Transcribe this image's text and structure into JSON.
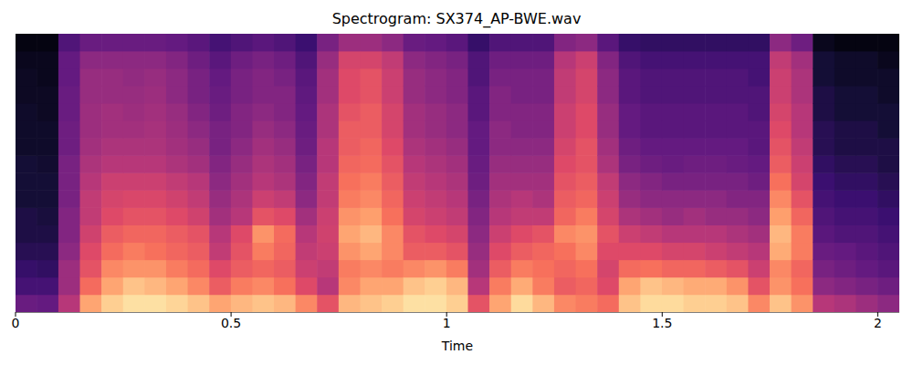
{
  "chart_data": {
    "type": "heatmap",
    "title": "Spectrogram: SX374_AP-BWE.wav",
    "x_label": "Time",
    "tick_labels": "x",
    "xlim": [
      0,
      2.05
    ],
    "xticks": [
      0,
      0.5,
      1,
      1.5,
      2
    ],
    "ylim": [
      0,
      8000
    ],
    "zlim": [
      -80,
      0
    ],
    "x": [
      0,
      0.05,
      0.1,
      0.15,
      0.2,
      0.25,
      0.3,
      0.35,
      0.4,
      0.45,
      0.5,
      0.55,
      0.6,
      0.65,
      0.7,
      0.75,
      0.8,
      0.85,
      0.9,
      0.95,
      1.0,
      1.05,
      1.1,
      1.15,
      1.2,
      1.25,
      1.3,
      1.35,
      1.4,
      1.45,
      1.5,
      1.55,
      1.6,
      1.65,
      1.7,
      1.75,
      1.8,
      1.85,
      1.9,
      1.95,
      2.0
    ],
    "y": [
      0,
      500,
      1000,
      1500,
      2000,
      2500,
      3000,
      3500,
      4000,
      4500,
      5000,
      5500,
      6000,
      6500,
      7000,
      7500
    ],
    "cells": [
      [
        -55,
        -62,
        -65,
        -68,
        -70,
        -70,
        -72,
        -72,
        -72,
        -74,
        -74,
        -74,
        -75,
        -75,
        -76,
        -78
      ],
      [
        -56,
        -62,
        -66,
        -68,
        -70,
        -71,
        -72,
        -72,
        -73,
        -74,
        -74,
        -75,
        -75,
        -76,
        -76,
        -78
      ],
      [
        -40,
        -45,
        -45,
        -48,
        -50,
        -50,
        -52,
        -52,
        -52,
        -54,
        -54,
        -55,
        -55,
        -56,
        -56,
        -60
      ],
      [
        -15,
        -25,
        -30,
        -32,
        -35,
        -38,
        -38,
        -40,
        -42,
        -44,
        -45,
        -45,
        -46,
        -46,
        -48,
        -55
      ],
      [
        -8,
        -15,
        -20,
        -25,
        -28,
        -32,
        -34,
        -36,
        -40,
        -42,
        -44,
        -44,
        -46,
        -46,
        -48,
        -55
      ],
      [
        -5,
        -10,
        -18,
        -22,
        -26,
        -30,
        -33,
        -36,
        -40,
        -42,
        -44,
        -45,
        -46,
        -47,
        -48,
        -55
      ],
      [
        -5,
        -12,
        -18,
        -24,
        -26,
        -30,
        -33,
        -36,
        -40,
        -42,
        -43,
        -44,
        -45,
        -46,
        -48,
        -55
      ],
      [
        -7,
        -15,
        -22,
        -26,
        -28,
        -32,
        -35,
        -38,
        -42,
        -44,
        -45,
        -46,
        -48,
        -48,
        -50,
        -56
      ],
      [
        -10,
        -20,
        -25,
        -28,
        -30,
        -35,
        -38,
        -40,
        -44,
        -46,
        -48,
        -50,
        -52,
        -52,
        -54,
        -58
      ],
      [
        -15,
        -28,
        -32,
        -38,
        -40,
        -44,
        -46,
        -48,
        -50,
        -52,
        -52,
        -54,
        -55,
        -56,
        -58,
        -62
      ],
      [
        -12,
        -22,
        -28,
        -30,
        -32,
        -40,
        -42,
        -44,
        -46,
        -48,
        -50,
        -50,
        -52,
        -52,
        -54,
        -60
      ],
      [
        -10,
        -20,
        -26,
        -22,
        -18,
        -30,
        -36,
        -40,
        -42,
        -44,
        -46,
        -48,
        -50,
        -50,
        -52,
        -58
      ],
      [
        -12,
        -24,
        -28,
        -26,
        -25,
        -32,
        -38,
        -42,
        -44,
        -46,
        -48,
        -50,
        -50,
        -52,
        -54,
        -60
      ],
      [
        -20,
        -32,
        -36,
        -38,
        -40,
        -44,
        -48,
        -50,
        -52,
        -54,
        -55,
        -56,
        -57,
        -58,
        -60,
        -64
      ],
      [
        -30,
        -40,
        -38,
        -36,
        -35,
        -36,
        -38,
        -38,
        -40,
        -40,
        -42,
        -42,
        -44,
        -44,
        -46,
        -52
      ],
      [
        -12,
        -20,
        -22,
        -18,
        -15,
        -18,
        -22,
        -24,
        -26,
        -28,
        -28,
        -30,
        -32,
        -32,
        -34,
        -45
      ],
      [
        -10,
        -15,
        -20,
        -15,
        -12,
        -16,
        -20,
        -22,
        -25,
        -26,
        -28,
        -28,
        -30,
        -30,
        -34,
        -45
      ],
      [
        -8,
        -15,
        -22,
        -20,
        -20,
        -24,
        -26,
        -28,
        -30,
        -32,
        -34,
        -34,
        -36,
        -36,
        -38,
        -48
      ],
      [
        -5,
        -10,
        -20,
        -28,
        -30,
        -34,
        -36,
        -38,
        -40,
        -42,
        -44,
        -44,
        -46,
        -46,
        -48,
        -55
      ],
      [
        -5,
        -8,
        -18,
        -28,
        -32,
        -36,
        -38,
        -40,
        -42,
        -44,
        -46,
        -46,
        -48,
        -48,
        -50,
        -56
      ],
      [
        -8,
        -12,
        -22,
        -30,
        -34,
        -38,
        -40,
        -42,
        -44,
        -46,
        -48,
        -48,
        -50,
        -50,
        -52,
        -58
      ],
      [
        -30,
        -40,
        -44,
        -46,
        -48,
        -50,
        -52,
        -54,
        -55,
        -56,
        -56,
        -58,
        -58,
        -60,
        -60,
        -65
      ],
      [
        -15,
        -22,
        -28,
        -32,
        -36,
        -40,
        -42,
        -44,
        -46,
        -48,
        -48,
        -50,
        -50,
        -52,
        -54,
        -60
      ],
      [
        -6,
        -14,
        -22,
        -28,
        -32,
        -38,
        -40,
        -44,
        -46,
        -48,
        -50,
        -50,
        -52,
        -52,
        -54,
        -60
      ],
      [
        -12,
        -22,
        -24,
        -26,
        -30,
        -38,
        -42,
        -44,
        -46,
        -48,
        -50,
        -50,
        -52,
        -52,
        -54,
        -60
      ],
      [
        -20,
        -28,
        -26,
        -24,
        -20,
        -26,
        -28,
        -30,
        -32,
        -34,
        -36,
        -36,
        -38,
        -38,
        -40,
        -50
      ],
      [
        -22,
        -26,
        -24,
        -20,
        -18,
        -22,
        -26,
        -28,
        -30,
        -30,
        -32,
        -32,
        -34,
        -34,
        -36,
        -48
      ],
      [
        -25,
        -32,
        -34,
        -32,
        -30,
        -34,
        -36,
        -38,
        -42,
        -44,
        -46,
        -46,
        -48,
        -48,
        -50,
        -58
      ],
      [
        -10,
        -15,
        -25,
        -32,
        -36,
        -42,
        -46,
        -48,
        -52,
        -54,
        -56,
        -56,
        -58,
        -58,
        -60,
        -65
      ],
      [
        -6,
        -10,
        -24,
        -32,
        -38,
        -44,
        -48,
        -50,
        -54,
        -56,
        -58,
        -58,
        -60,
        -60,
        -62,
        -66
      ],
      [
        -6,
        -12,
        -26,
        -34,
        -40,
        -46,
        -48,
        -52,
        -55,
        -56,
        -58,
        -58,
        -60,
        -60,
        -62,
        -66
      ],
      [
        -8,
        -14,
        -26,
        -34,
        -40,
        -44,
        -48,
        -52,
        -54,
        -56,
        -58,
        -58,
        -60,
        -60,
        -62,
        -66
      ],
      [
        -8,
        -14,
        -28,
        -36,
        -40,
        -46,
        -48,
        -52,
        -54,
        -56,
        -58,
        -58,
        -60,
        -60,
        -62,
        -66
      ],
      [
        -10,
        -18,
        -30,
        -38,
        -42,
        -46,
        -50,
        -52,
        -55,
        -56,
        -58,
        -58,
        -60,
        -60,
        -62,
        -66
      ],
      [
        -20,
        -30,
        -36,
        -40,
        -44,
        -48,
        -50,
        -54,
        -56,
        -58,
        -58,
        -60,
        -60,
        -62,
        -62,
        -66
      ],
      [
        -10,
        -18,
        -20,
        -14,
        -12,
        -16,
        -20,
        -24,
        -28,
        -30,
        -32,
        -34,
        -36,
        -36,
        -38,
        -48
      ],
      [
        -18,
        -24,
        -26,
        -22,
        -22,
        -26,
        -30,
        -34,
        -36,
        -38,
        -40,
        -40,
        -42,
        -42,
        -44,
        -54
      ],
      [
        -40,
        -48,
        -52,
        -55,
        -58,
        -60,
        -62,
        -64,
        -66,
        -68,
        -68,
        -70,
        -70,
        -72,
        -72,
        -76
      ],
      [
        -42,
        -50,
        -54,
        -56,
        -60,
        -62,
        -64,
        -66,
        -68,
        -70,
        -70,
        -72,
        -72,
        -74,
        -74,
        -78
      ],
      [
        -45,
        -52,
        -56,
        -58,
        -60,
        -62,
        -64,
        -66,
        -68,
        -70,
        -70,
        -72,
        -72,
        -74,
        -74,
        -78
      ],
      [
        -48,
        -54,
        -58,
        -60,
        -62,
        -64,
        -66,
        -68,
        -70,
        -70,
        -72,
        -72,
        -74,
        -74,
        -76,
        -78
      ]
    ]
  }
}
